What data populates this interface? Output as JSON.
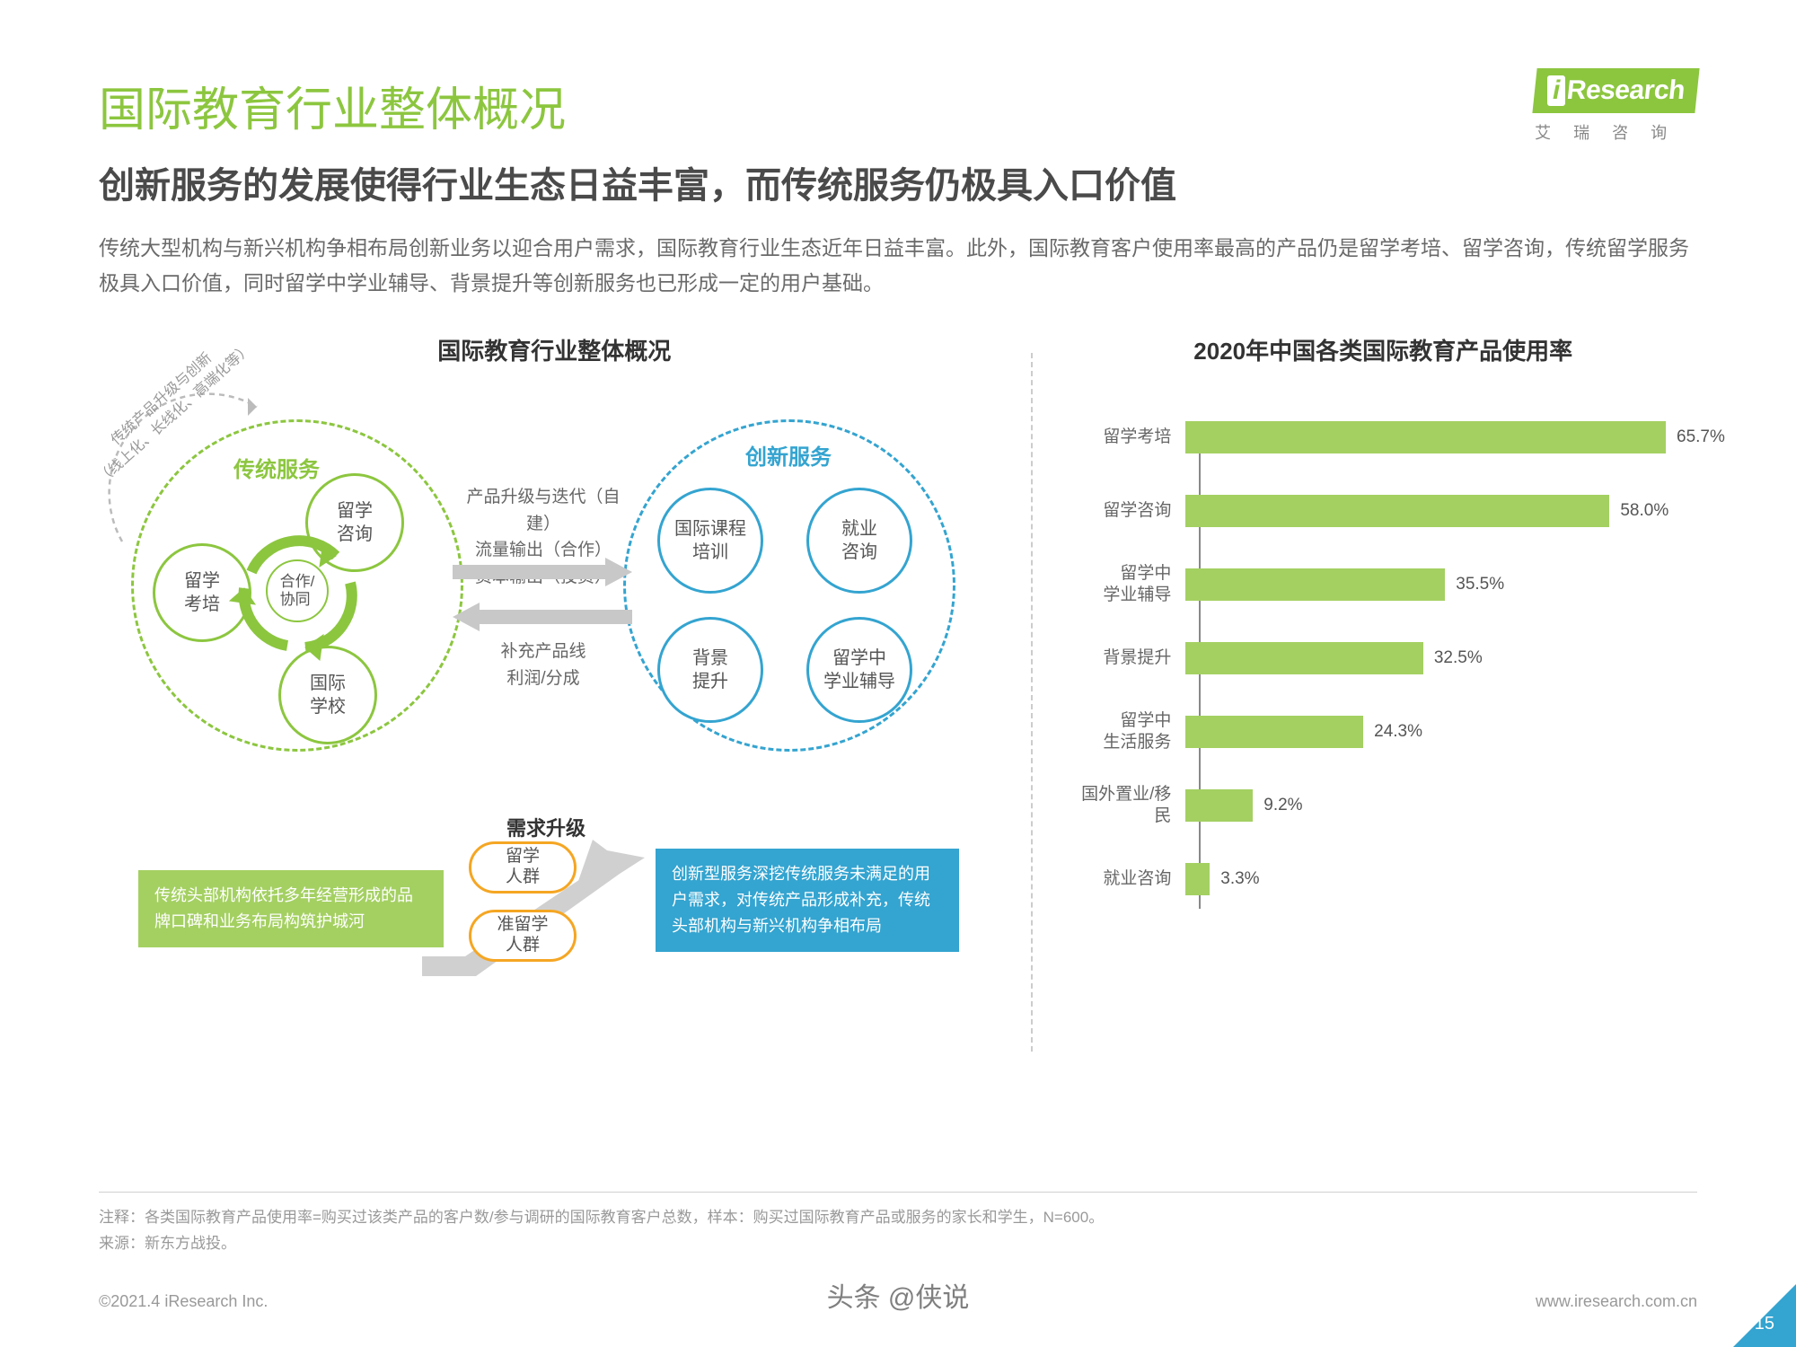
{
  "logo": {
    "brand": "Research",
    "sub": "艾 瑞 咨 询"
  },
  "title": "国际教育行业整体概况",
  "subtitle": "创新服务的发展使得行业生态日益丰富，而传统服务仍极具入口价值",
  "body": "传统大型机构与新兴机构争相布局创新业务以迎合用户需求，国际教育行业生态近年日益丰富。此外，国际教育客户使用率最高的产品仍是留学考培、留学咨询，传统留学服务极具入口价值，同时留学中学业辅导、背景提升等创新服务也已形成一定的用户基础。",
  "diagram": {
    "section_title": "国际教育行业整体概况",
    "traditional": {
      "label": "传统服务",
      "nodes": [
        "留学\n咨询",
        "留学\n考培",
        "国际\n学校"
      ],
      "center": "合作/\n协同",
      "outer_arc": "传统产品升级与创新\n（线上化、长线化、高端化等）",
      "box": "传统头部机构依托多年经营形成的品牌口碑和业务布局构筑护城河"
    },
    "innovation": {
      "label": "创新服务",
      "nodes": [
        "国际课程\n培训",
        "就业\n咨询",
        "背景\n提升",
        "留学中\n学业辅导"
      ],
      "box": "创新型服务深挖传统服务未满足的用户需求，对传统产品形成补充，传统头部机构与新兴机构争相布局"
    },
    "link_top": "产品升级与迭代（自建）\n流量输出（合作）\n资本输出（投资）",
    "link_bottom": "补充产品线\n利润/分成",
    "demand": {
      "label": "需求升级",
      "pills": [
        "留学\n人群",
        "准留学\n人群"
      ]
    }
  },
  "chart": {
    "section_title": "2020年中国各类国际教育产品使用率",
    "max": 70,
    "bar_color": "#a4d062",
    "rows": [
      {
        "label": "留学考培",
        "value": 65.7
      },
      {
        "label": "留学咨询",
        "value": 58.0
      },
      {
        "label": "留学中\n学业辅导",
        "value": 35.5
      },
      {
        "label": "背景提升",
        "value": 32.5
      },
      {
        "label": "留学中\n生活服务",
        "value": 24.3
      },
      {
        "label": "国外置业/移民",
        "value": 9.2
      },
      {
        "label": "就业咨询",
        "value": 3.3
      }
    ]
  },
  "footnote": "注释：各类国际教育产品使用率=购买过该类产品的客户数/参与调研的国际教育客户总数，样本：购买过国际教育产品或服务的家长和学生，N=600。\n来源：新东方战投。",
  "footer": {
    "left": "©2021.4 iResearch Inc.",
    "right": "www.iresearch.com.cn"
  },
  "watermark": "头条 @侠说",
  "pagenum": "15"
}
